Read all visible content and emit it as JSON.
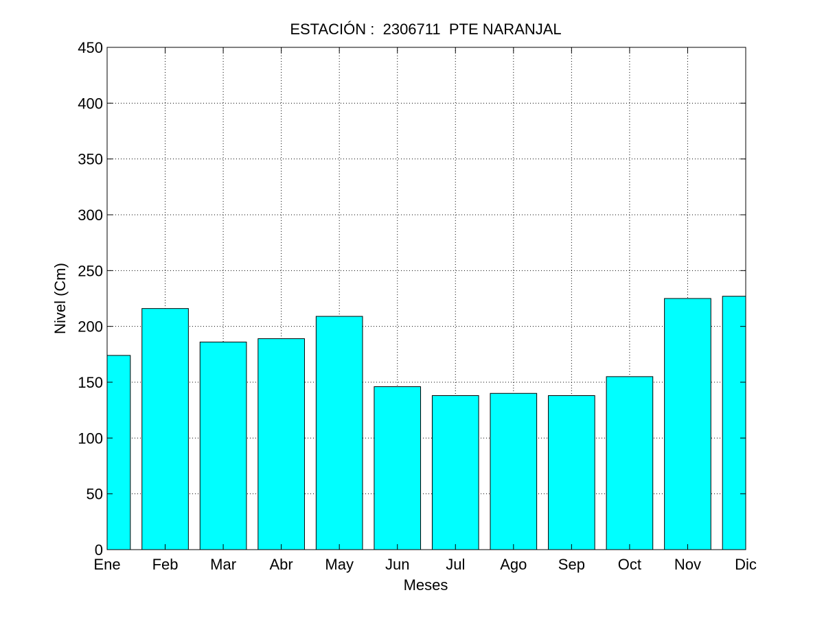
{
  "chart_data": {
    "type": "bar",
    "title": "ESTACIÓN :  2306711  PTE NARANJAL",
    "xlabel": "Meses",
    "ylabel": "Nivel (Cm)",
    "categories": [
      "Ene",
      "Feb",
      "Mar",
      "Abr",
      "May",
      "Jun",
      "Jul",
      "Ago",
      "Sep",
      "Oct",
      "Nov",
      "Dic"
    ],
    "values": [
      174,
      216,
      186,
      189,
      209,
      146,
      138,
      140,
      138,
      155,
      225,
      227
    ],
    "ylim": [
      0,
      450
    ],
    "yticks": [
      0,
      50,
      100,
      150,
      200,
      250,
      300,
      350,
      400,
      450
    ],
    "ytick_labels": [
      "0",
      "50",
      "100",
      "150",
      "200",
      "250",
      "300",
      "350",
      "400",
      "450"
    ],
    "xlim": [
      1,
      12
    ],
    "grid": true,
    "bar_color": "#00ffff",
    "edge_color": "#000000"
  }
}
